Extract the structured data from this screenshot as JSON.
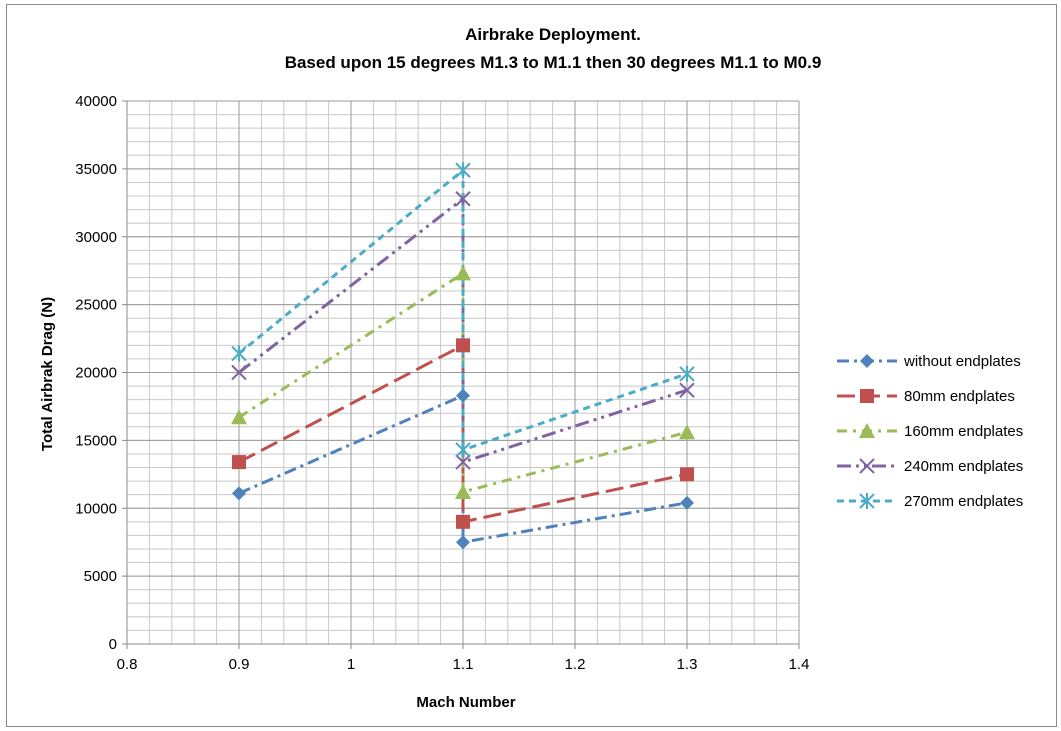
{
  "chart_data": {
    "type": "line",
    "title": "Airbrake Deployment.",
    "subtitle": "Based upon  15 degrees M1.3 to M1.1 then 30 degrees M1.1 to M0.9",
    "xlabel": "Mach Number",
    "ylabel": "Total Airbrak Drag (N)",
    "xlim": [
      0.8,
      1.4
    ],
    "ylim": [
      0,
      40000
    ],
    "x_ticks": [
      "0.8",
      "0.9",
      "1",
      "1.1",
      "1.2",
      "1.3",
      "1.4"
    ],
    "y_ticks": [
      "0",
      "5000",
      "10000",
      "15000",
      "20000",
      "25000",
      "30000",
      "35000",
      "40000"
    ],
    "grid": true,
    "legend_position": "right",
    "series": [
      {
        "name": "without endplates",
        "color": "#4f81bd",
        "marker": "diamond",
        "points": [
          [
            0.9,
            11100
          ],
          [
            1.1,
            18300
          ],
          [
            1.1,
            7500
          ],
          [
            1.3,
            10400
          ]
        ]
      },
      {
        "name": "80mm endplates",
        "color": "#c0504d",
        "marker": "square",
        "points": [
          [
            0.9,
            13400
          ],
          [
            1.1,
            22000
          ],
          [
            1.1,
            9000
          ],
          [
            1.3,
            12500
          ]
        ]
      },
      {
        "name": "160mm endplates",
        "color": "#9bbb59",
        "marker": "triangle",
        "points": [
          [
            0.9,
            16700
          ],
          [
            1.1,
            27300
          ],
          [
            1.1,
            11200
          ],
          [
            1.3,
            15600
          ]
        ]
      },
      {
        "name": "240mm endplates",
        "color": "#8064a2",
        "marker": "x",
        "points": [
          [
            0.9,
            20000
          ],
          [
            1.1,
            32800
          ],
          [
            1.1,
            13400
          ],
          [
            1.3,
            18700
          ]
        ]
      },
      {
        "name": "270mm endplates",
        "color": "#4bacc6",
        "marker": "star",
        "points": [
          [
            0.9,
            21400
          ],
          [
            1.1,
            34900
          ],
          [
            1.1,
            14300
          ],
          [
            1.3,
            19900
          ]
        ]
      }
    ]
  }
}
